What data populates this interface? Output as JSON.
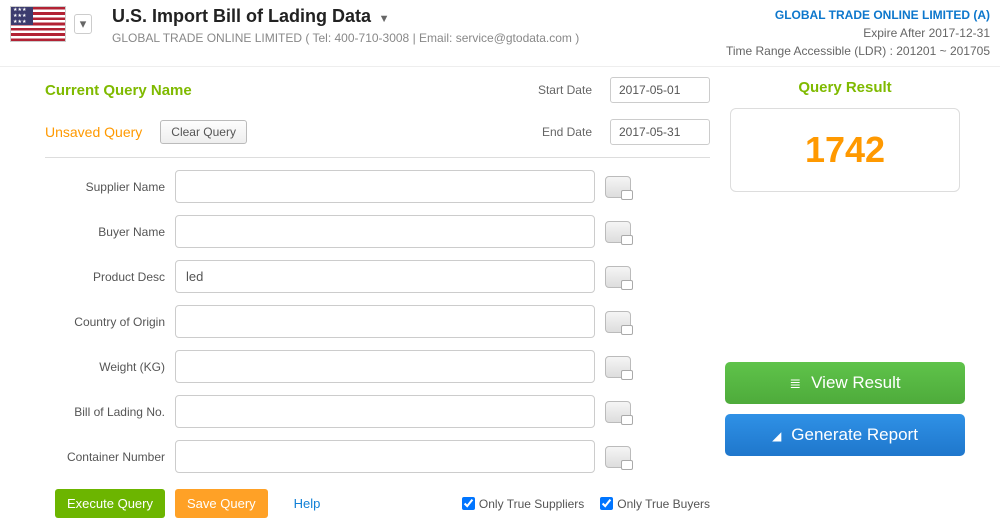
{
  "header": {
    "title": "U.S. Import Bill of Lading Data",
    "subtitle": "GLOBAL TRADE ONLINE LIMITED ( Tel: 400-710-3008 | Email: service@gtodata.com )",
    "company": "GLOBAL TRADE ONLINE LIMITED (A)",
    "expire": "Expire After 2017-12-31",
    "range": "Time Range Accessible (LDR) : 201201 ~ 201705"
  },
  "query": {
    "current_name_label": "Current Query Name",
    "unsaved_label": "Unsaved Query",
    "clear_label": "Clear Query",
    "start_date_label": "Start Date",
    "end_date_label": "End Date",
    "start_date": "2017-05-01",
    "end_date": "2017-05-31"
  },
  "fields": {
    "supplier_label": "Supplier Name",
    "supplier_value": "",
    "buyer_label": "Buyer Name",
    "buyer_value": "",
    "product_label": "Product Desc",
    "product_value": "led",
    "country_label": "Country of Origin",
    "country_value": "",
    "weight_label": "Weight (KG)",
    "weight_value": "",
    "bol_label": "Bill of Lading No.",
    "bol_value": "",
    "container_label": "Container Number",
    "container_value": ""
  },
  "bottom": {
    "execute": "Execute Query",
    "save": "Save Query",
    "help": "Help",
    "only_suppliers": "Only True Suppliers",
    "only_buyers": "Only True Buyers"
  },
  "result": {
    "title": "Query Result",
    "count": "1742",
    "view_label": "View Result",
    "report_label": "Generate Report"
  }
}
